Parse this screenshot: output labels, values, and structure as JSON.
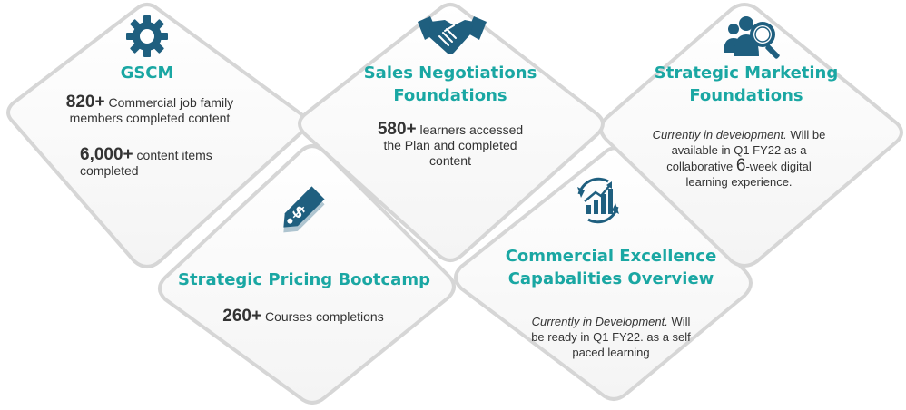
{
  "cards": {
    "gscm": {
      "title": "GSCM",
      "stat1_value": "820+",
      "stat1_text_a": "Commercial job family",
      "stat1_text_b": "members completed content",
      "stat2_value": "6,000+",
      "stat2_text_a": "content items",
      "stat2_text_b": "completed",
      "icon": "gear-icon"
    },
    "sales": {
      "title_line1": "Sales Negotiations",
      "title_line2": "Foundations",
      "stat_value": "580+",
      "stat_text_a": "learners accessed",
      "stat_text_b": "the Plan and completed",
      "stat_text_c": "content",
      "icon": "handshake-icon"
    },
    "marketing": {
      "title_line1": "Strategic Marketing",
      "title_line2": "Foundations",
      "line1_italic": "Currently in development.",
      "line1_rest": " Will be",
      "line2": "available in Q1 FY22 as a",
      "line3_a": "collaborative ",
      "line3_big": "6",
      "line3_b": "-week digital",
      "line4": "learning experience.",
      "icon": "people-search-icon"
    },
    "pricing": {
      "title": "Strategic Pricing Bootcamp",
      "stat_value": "260+",
      "stat_text": "Courses completions",
      "icon": "price-tag-icon"
    },
    "commercial": {
      "title_line1": "Commercial Excellence",
      "title_line2": "Capabalities Overview",
      "line1_italic": "Currently in Development.",
      "line1_rest": " Will",
      "line2": "be ready in Q1 FY22. as a self",
      "line3": "paced learning",
      "icon": "growth-chart-icon"
    }
  },
  "colors": {
    "title": "#1aa7a3",
    "icon": "#1f5f7f",
    "text": "#333333"
  }
}
